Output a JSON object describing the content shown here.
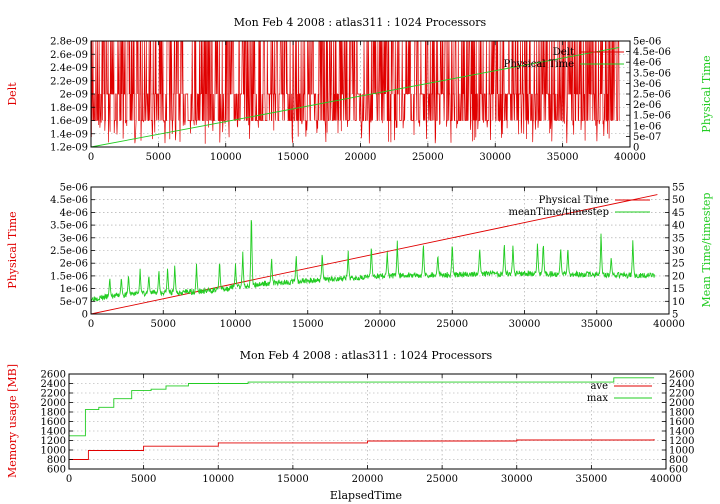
{
  "colors": {
    "red": "#e00000",
    "green": "#22cc22"
  },
  "chart_data": [
    {
      "type": "line",
      "title": "Mon Feb 4 2008 : atlas311 : 1024 Processors",
      "ylabel": "Delt",
      "y2label": "Physical Time",
      "xlim": [
        0,
        40000
      ],
      "ylim": [
        1.2e-09,
        2.8e-09
      ],
      "y2lim": [
        0,
        5e-06
      ],
      "xticks": [
        "0",
        "5000",
        "10000",
        "15000",
        "20000",
        "25000",
        "30000",
        "35000",
        "40000"
      ],
      "yticks": [
        "1.2e-09",
        "1.4e-09",
        "1.6e-09",
        "1.8e-09",
        "2e-09",
        "2.2e-09",
        "2.4e-09",
        "2.6e-09",
        "2.8e-09"
      ],
      "y2ticks": [
        "0",
        "5e-07",
        "1e-06",
        "1.5e-06",
        "2e-06",
        "2.5e-06",
        "3e-06",
        "3.5e-06",
        "4e-06",
        "4.5e-06",
        "5e-06"
      ],
      "legend": "top-right",
      "series": [
        {
          "name": "Delt",
          "axis": "y",
          "color": "#e00000",
          "style": "noisy",
          "x_end": 39200,
          "levels": [
            1.6e-09,
            2e-09,
            2.8e-09
          ],
          "min": 1.25e-09
        },
        {
          "name": "Physical Time",
          "axis": "y2",
          "color": "#22cc22",
          "x": [
            0,
            10000,
            20000,
            30000,
            39200
          ],
          "y": [
            0,
            1.2e-06,
            2.4e-06,
            3.6e-06,
            4.7e-06
          ]
        }
      ]
    },
    {
      "type": "line",
      "title": "",
      "ylabel": "Physical Time",
      "y2label": "Mean Time/timestep",
      "xlim": [
        0,
        40000
      ],
      "ylim": [
        0,
        5e-06
      ],
      "y2lim": [
        5,
        55
      ],
      "xticks": [
        "0",
        "5000",
        "10000",
        "15000",
        "20000",
        "25000",
        "30000",
        "35000",
        "40000"
      ],
      "yticks": [
        "0",
        "5e-07",
        "1e-06",
        "1.5e-06",
        "2e-06",
        "2.5e-06",
        "3e-06",
        "3.5e-06",
        "4e-06",
        "4.5e-06",
        "5e-06"
      ],
      "y2ticks": [
        "5",
        "10",
        "15",
        "20",
        "25",
        "30",
        "35",
        "40",
        "45",
        "50",
        "55"
      ],
      "legend": "top-right",
      "series": [
        {
          "name": "Physical Time",
          "axis": "y",
          "color": "#e00000",
          "x": [
            0,
            10000,
            20000,
            30000,
            39200
          ],
          "y": [
            0,
            1.2e-06,
            2.4e-06,
            3.6e-06,
            4.7e-06
          ]
        },
        {
          "name": "meanTime/timestep",
          "axis": "y2",
          "color": "#22cc22",
          "style": "spiky",
          "x_end": 39000,
          "baseline": [
            [
              0,
              11
            ],
            [
              3000,
              13
            ],
            [
              8000,
              14
            ],
            [
              12000,
              17
            ],
            [
              20000,
              20
            ],
            [
              30000,
              21
            ],
            [
              39000,
              20
            ]
          ],
          "spikes": [
            [
              1300,
              20
            ],
            [
              2100,
              20
            ],
            [
              2600,
              21
            ],
            [
              3400,
              23
            ],
            [
              4000,
              21
            ],
            [
              4700,
              23
            ],
            [
              5300,
              24
            ],
            [
              5800,
              25
            ],
            [
              7300,
              25
            ],
            [
              8900,
              27
            ],
            [
              10000,
              25
            ],
            [
              10500,
              30
            ],
            [
              11100,
              48
            ],
            [
              12500,
              28
            ],
            [
              14200,
              29
            ],
            [
              16000,
              30
            ],
            [
              17800,
              30
            ],
            [
              19400,
              33
            ],
            [
              20500,
              30
            ],
            [
              21200,
              34
            ],
            [
              23000,
              34
            ],
            [
              24000,
              29
            ],
            [
              25000,
              34
            ],
            [
              26900,
              32
            ],
            [
              28600,
              34
            ],
            [
              29200,
              33
            ],
            [
              30900,
              34
            ],
            [
              31300,
              34
            ],
            [
              32500,
              32
            ],
            [
              33000,
              32
            ],
            [
              35300,
              38
            ],
            [
              36000,
              28
            ],
            [
              37500,
              35
            ]
          ]
        }
      ]
    },
    {
      "type": "line",
      "title": "Mon Feb 4 2008 : atlas311 : 1024 Processors",
      "xlabel": "ElapsedTime",
      "ylabel": "Memory usage [MB]",
      "xlim": [
        0,
        40000
      ],
      "ylim": [
        600,
        2600
      ],
      "y2lim": [
        600,
        2600
      ],
      "xticks": [
        "0",
        "5000",
        "10000",
        "15000",
        "20000",
        "25000",
        "30000",
        "35000",
        "40000"
      ],
      "yticks": [
        "600",
        "800",
        "1000",
        "1200",
        "1400",
        "1600",
        "1800",
        "2000",
        "2200",
        "2400",
        "2600"
      ],
      "y2ticks": [
        "600",
        "800",
        "1000",
        "1200",
        "1400",
        "1600",
        "1800",
        "2000",
        "2200",
        "2400",
        "2600"
      ],
      "legend": "top-right",
      "series": [
        {
          "name": "ave",
          "axis": "y",
          "color": "#e00000",
          "style": "step",
          "x": [
            0,
            900,
            1300,
            5000,
            10000,
            20000,
            30000,
            39200
          ],
          "y": [
            800,
            800,
            990,
            1080,
            1150,
            1190,
            1210,
            1230
          ]
        },
        {
          "name": "max",
          "axis": "y",
          "color": "#22cc22",
          "style": "step",
          "x": [
            0,
            900,
            1100,
            2000,
            3000,
            4200,
            5500,
            6500,
            8000,
            12000,
            20000,
            36500,
            39200
          ],
          "y": [
            1300,
            1300,
            1850,
            1900,
            2080,
            2250,
            2280,
            2350,
            2400,
            2430,
            2430,
            2520,
            2520
          ]
        }
      ]
    }
  ]
}
